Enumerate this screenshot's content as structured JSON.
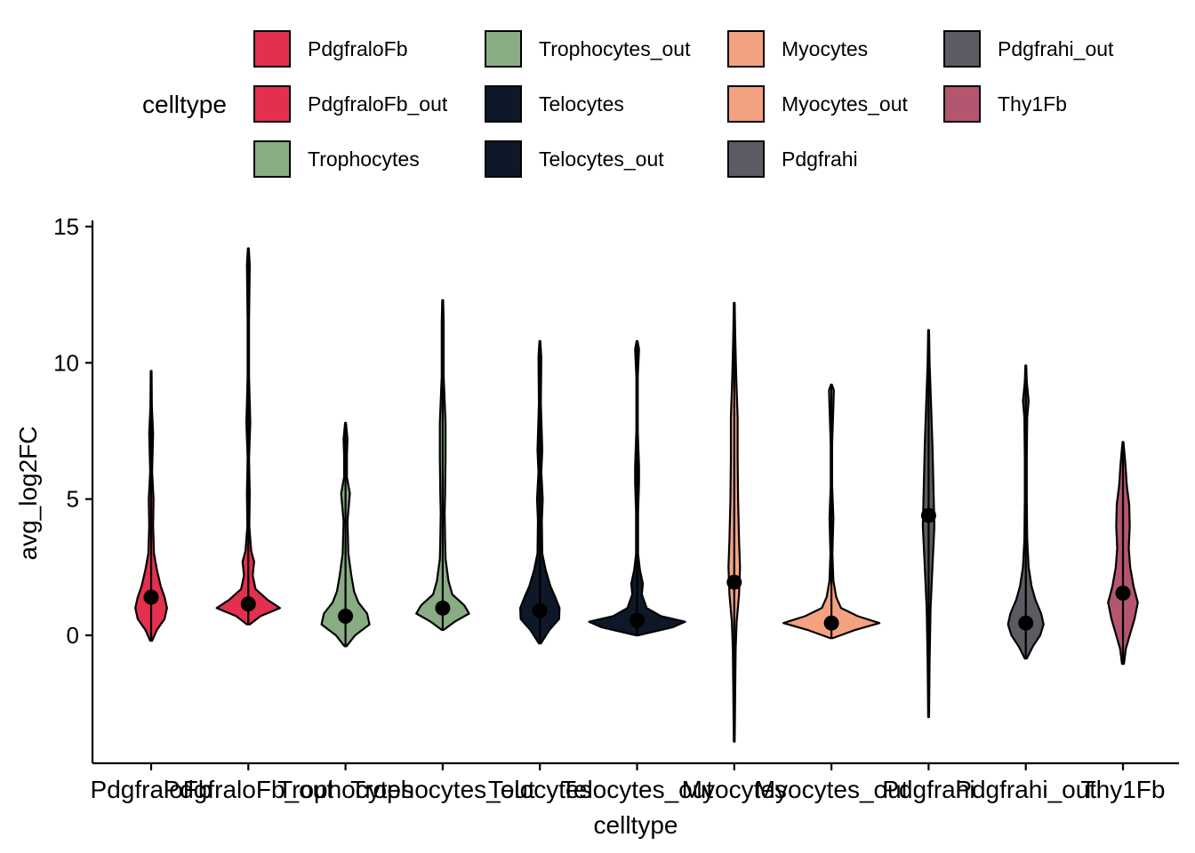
{
  "legend": {
    "title": "celltype",
    "entries": [
      {
        "label": "PdgfraloFb",
        "color": "#E2304E"
      },
      {
        "label": "PdgfraloFb_out",
        "color": "#E2304E"
      },
      {
        "label": "Trophocytes",
        "color": "#8AAC84"
      },
      {
        "label": "Trophocytes_out",
        "color": "#8AAC84"
      },
      {
        "label": "Telocytes",
        "color": "#0E1829"
      },
      {
        "label": "Telocytes_out",
        "color": "#0E1829"
      },
      {
        "label": "Myocytes",
        "color": "#F3A281"
      },
      {
        "label": "Myocytes_out",
        "color": "#F3A281"
      },
      {
        "label": "Pdgfrahi",
        "color": "#5C5B63"
      },
      {
        "label": "Pdgfrahi_out",
        "color": "#5C5B63"
      },
      {
        "label": "Thy1Fb",
        "color": "#B3566F"
      }
    ]
  },
  "chart_data": {
    "type": "violin",
    "xlabel": "celltype",
    "ylabel": "avg_log2FC",
    "ylim": [
      -4.7,
      15.3
    ],
    "yticks": [
      0,
      5,
      10,
      15
    ],
    "grid": false,
    "legend_position": "top",
    "point_marker": "mean",
    "categories": [
      "PdgfraloFb",
      "PdgfraloFb_out",
      "Trophocytes",
      "Trophocytes_out",
      "Telocytes",
      "Telocytes_out",
      "Myocytes",
      "Myocytes_out",
      "Pdgfrahi",
      "Pdgfrahi_out",
      "Thy1Fb"
    ],
    "series": [
      {
        "category": "PdgfraloFb",
        "color": "#E2304E",
        "mean": 1.4,
        "min": -0.2,
        "max": 9.7,
        "density": [
          [
            -0.2,
            0.02
          ],
          [
            0.2,
            0.12
          ],
          [
            0.6,
            0.28
          ],
          [
            1.0,
            0.33
          ],
          [
            1.4,
            0.28
          ],
          [
            1.8,
            0.2
          ],
          [
            2.4,
            0.12
          ],
          [
            3.0,
            0.06
          ],
          [
            4.0,
            0.04
          ],
          [
            5.0,
            0.05
          ],
          [
            6.0,
            0.02
          ],
          [
            7.4,
            0.04
          ],
          [
            8.4,
            0.015
          ],
          [
            9.7,
            0.01
          ]
        ]
      },
      {
        "category": "PdgfraloFb_out",
        "color": "#E2304E",
        "mean": 1.15,
        "min": 0.4,
        "max": 14.2,
        "density": [
          [
            0.4,
            0.03
          ],
          [
            0.7,
            0.25
          ],
          [
            1.0,
            0.66
          ],
          [
            1.3,
            0.4
          ],
          [
            1.7,
            0.15
          ],
          [
            2.2,
            0.09
          ],
          [
            2.7,
            0.12
          ],
          [
            3.1,
            0.06
          ],
          [
            4.0,
            0.02
          ],
          [
            5.2,
            0.03
          ],
          [
            6.5,
            0.015
          ],
          [
            7.8,
            0.04
          ],
          [
            9.5,
            0.015
          ],
          [
            11.5,
            0.015
          ],
          [
            13.6,
            0.03
          ],
          [
            14.2,
            0.01
          ]
        ]
      },
      {
        "category": "Trophocytes",
        "color": "#8AAC84",
        "mean": 0.7,
        "min": -0.4,
        "max": 7.8,
        "density": [
          [
            -0.4,
            0.02
          ],
          [
            0.0,
            0.2
          ],
          [
            0.4,
            0.5
          ],
          [
            0.8,
            0.45
          ],
          [
            1.2,
            0.27
          ],
          [
            1.6,
            0.18
          ],
          [
            2.2,
            0.12
          ],
          [
            3.0,
            0.06
          ],
          [
            4.2,
            0.04
          ],
          [
            5.2,
            0.09
          ],
          [
            5.8,
            0.03
          ],
          [
            6.6,
            0.03
          ],
          [
            7.2,
            0.04
          ],
          [
            7.8,
            0.01
          ]
        ]
      },
      {
        "category": "Trophocytes_out",
        "color": "#8AAC84",
        "mean": 1.0,
        "min": 0.2,
        "max": 12.3,
        "density": [
          [
            0.2,
            0.02
          ],
          [
            0.5,
            0.25
          ],
          [
            0.8,
            0.55
          ],
          [
            1.1,
            0.45
          ],
          [
            1.5,
            0.2
          ],
          [
            2.0,
            0.12
          ],
          [
            2.8,
            0.06
          ],
          [
            3.5,
            0.05
          ],
          [
            4.5,
            0.04
          ],
          [
            5.2,
            0.05
          ],
          [
            6.5,
            0.06
          ],
          [
            7.8,
            0.06
          ],
          [
            9.5,
            0.02
          ],
          [
            11.5,
            0.02
          ],
          [
            12.3,
            0.01
          ]
        ]
      },
      {
        "category": "Telocytes",
        "color": "#0E1829",
        "mean": 0.9,
        "min": -0.3,
        "max": 10.8,
        "density": [
          [
            -0.3,
            0.02
          ],
          [
            0.2,
            0.2
          ],
          [
            0.6,
            0.4
          ],
          [
            1.0,
            0.41
          ],
          [
            1.4,
            0.32
          ],
          [
            1.8,
            0.22
          ],
          [
            2.4,
            0.12
          ],
          [
            3.0,
            0.05
          ],
          [
            4.2,
            0.04
          ],
          [
            5.0,
            0.06
          ],
          [
            6.0,
            0.03
          ],
          [
            6.8,
            0.05
          ],
          [
            8.5,
            0.02
          ],
          [
            10.2,
            0.03
          ],
          [
            10.8,
            0.01
          ]
        ]
      },
      {
        "category": "Telocytes_out",
        "color": "#0E1829",
        "mean": 0.55,
        "min": 0.0,
        "max": 10.8,
        "density": [
          [
            0.0,
            0.02
          ],
          [
            0.3,
            0.75
          ],
          [
            0.5,
            1.0
          ],
          [
            0.7,
            0.5
          ],
          [
            1.0,
            0.2
          ],
          [
            1.5,
            0.1
          ],
          [
            1.9,
            0.12
          ],
          [
            2.4,
            0.06
          ],
          [
            3.0,
            0.02
          ],
          [
            4.5,
            0.02
          ],
          [
            5.6,
            0.04
          ],
          [
            6.2,
            0.04
          ],
          [
            7.5,
            0.015
          ],
          [
            9.5,
            0.015
          ],
          [
            10.5,
            0.04
          ],
          [
            10.8,
            0.01
          ]
        ]
      },
      {
        "category": "Myocytes",
        "color": "#F3A281",
        "mean": 1.95,
        "min": -3.9,
        "max": 12.2,
        "density": [
          [
            -3.9,
            0.01
          ],
          [
            -2.0,
            0.02
          ],
          [
            -0.5,
            0.03
          ],
          [
            0.5,
            0.05
          ],
          [
            1.5,
            0.1
          ],
          [
            2.5,
            0.12
          ],
          [
            3.5,
            0.1
          ],
          [
            5.0,
            0.08
          ],
          [
            6.5,
            0.07
          ],
          [
            8.0,
            0.07
          ],
          [
            9.5,
            0.04
          ],
          [
            11.0,
            0.02
          ],
          [
            12.2,
            0.01
          ]
        ]
      },
      {
        "category": "Myocytes_out",
        "color": "#F3A281",
        "mean": 0.45,
        "min": -0.1,
        "max": 9.2,
        "density": [
          [
            -0.1,
            0.03
          ],
          [
            0.2,
            0.5
          ],
          [
            0.45,
            1.0
          ],
          [
            0.7,
            0.55
          ],
          [
            1.0,
            0.2
          ],
          [
            1.4,
            0.1
          ],
          [
            2.0,
            0.04
          ],
          [
            3.0,
            0.02
          ],
          [
            4.3,
            0.04
          ],
          [
            5.5,
            0.015
          ],
          [
            7.0,
            0.015
          ],
          [
            8.4,
            0.04
          ],
          [
            9.0,
            0.05
          ],
          [
            9.2,
            0.01
          ]
        ]
      },
      {
        "category": "Pdgfrahi",
        "color": "#5C5B63",
        "mean": 4.4,
        "min": -3.0,
        "max": 11.2,
        "density": [
          [
            -3.0,
            0.01
          ],
          [
            -1.0,
            0.02
          ],
          [
            1.0,
            0.04
          ],
          [
            2.5,
            0.08
          ],
          [
            4.0,
            0.12
          ],
          [
            5.5,
            0.1
          ],
          [
            7.0,
            0.08
          ],
          [
            8.5,
            0.05
          ],
          [
            10.0,
            0.02
          ],
          [
            11.2,
            0.01
          ]
        ]
      },
      {
        "category": "Pdgfrahi_out",
        "color": "#5C5B63",
        "mean": 0.45,
        "min": -0.85,
        "max": 9.9,
        "density": [
          [
            -0.85,
            0.02
          ],
          [
            -0.4,
            0.15
          ],
          [
            0.0,
            0.3
          ],
          [
            0.4,
            0.37
          ],
          [
            0.8,
            0.32
          ],
          [
            1.3,
            0.2
          ],
          [
            1.8,
            0.12
          ],
          [
            2.5,
            0.06
          ],
          [
            3.5,
            0.03
          ],
          [
            5.0,
            0.02
          ],
          [
            6.5,
            0.02
          ],
          [
            8.0,
            0.03
          ],
          [
            8.6,
            0.06
          ],
          [
            9.3,
            0.02
          ],
          [
            9.9,
            0.01
          ]
        ]
      },
      {
        "category": "Thy1Fb",
        "color": "#B3566F",
        "mean": 1.55,
        "min": -1.05,
        "max": 7.1,
        "density": [
          [
            -1.05,
            0.02
          ],
          [
            -0.5,
            0.06
          ],
          [
            0.0,
            0.14
          ],
          [
            0.6,
            0.24
          ],
          [
            1.2,
            0.31
          ],
          [
            1.8,
            0.22
          ],
          [
            2.5,
            0.15
          ],
          [
            3.2,
            0.12
          ],
          [
            4.0,
            0.14
          ],
          [
            4.8,
            0.13
          ],
          [
            5.5,
            0.08
          ],
          [
            6.3,
            0.05
          ],
          [
            7.1,
            0.01
          ]
        ]
      }
    ]
  }
}
